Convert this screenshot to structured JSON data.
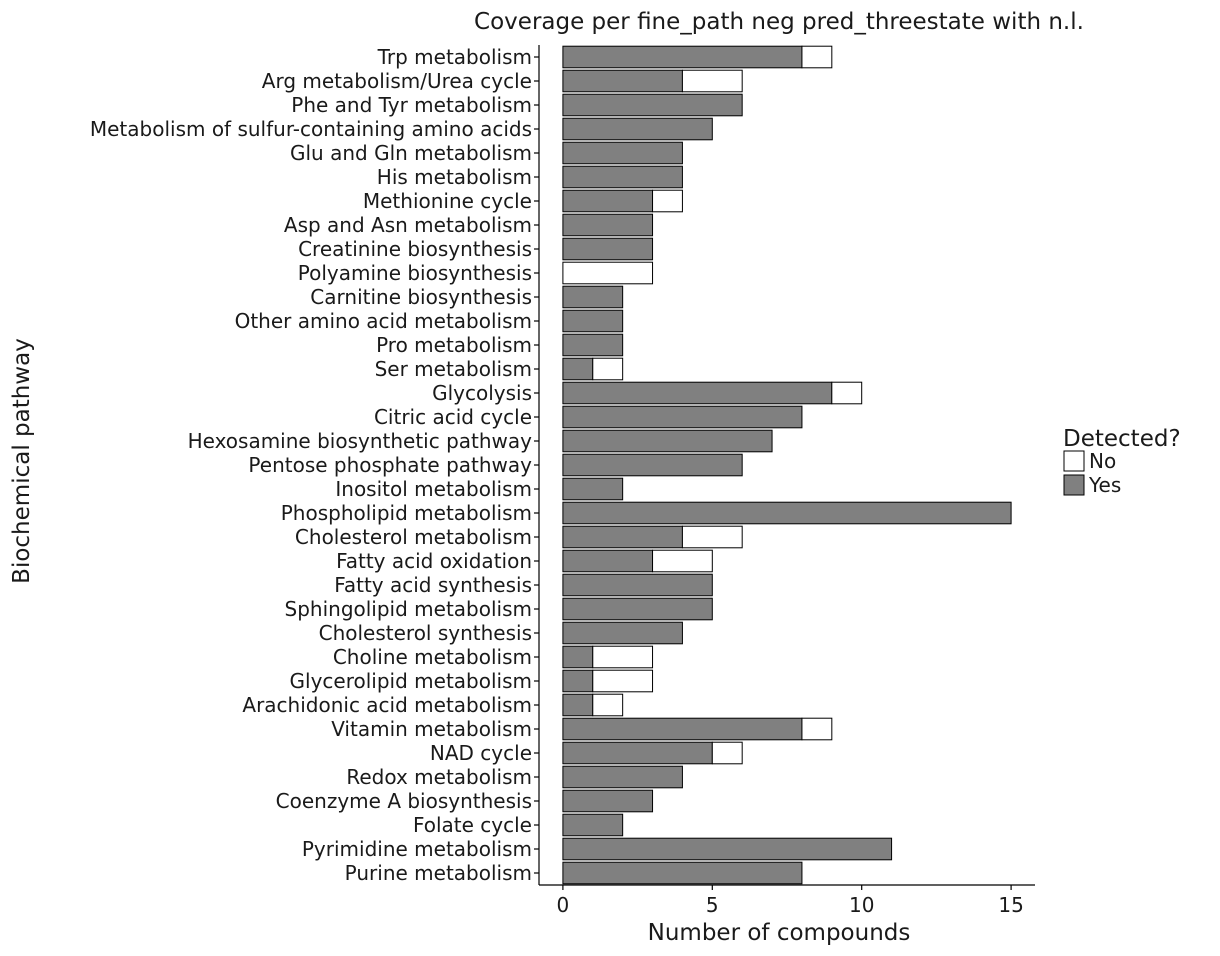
{
  "chart_data": {
    "type": "bar",
    "orientation": "horizontal",
    "stacked": true,
    "title": "Coverage per fine_path neg pred_threestate with n.l.",
    "xlabel": "Number of compounds",
    "ylabel": "Biochemical pathway",
    "xlim": [
      -0.8,
      15.8
    ],
    "xticks": [
      0,
      5,
      10,
      15
    ],
    "xtick_labels": [
      "0",
      "5",
      "10",
      "15"
    ],
    "grid": false,
    "legend": {
      "title": "Detected?",
      "placement": "right",
      "entries": [
        {
          "label": "No",
          "color": "#ffffff"
        },
        {
          "label": "Yes",
          "color": "#808080"
        }
      ]
    },
    "categories": [
      "Trp metabolism",
      "Arg metabolism/Urea cycle",
      "Phe and Tyr metabolism",
      "Metabolism of sulfur-containing amino acids",
      "Glu and Gln metabolism",
      "His metabolism",
      "Methionine cycle",
      "Asp and Asn metabolism",
      "Creatinine biosynthesis",
      "Polyamine biosynthesis",
      "Carnitine biosynthesis",
      "Other amino acid metabolism",
      "Pro metabolism",
      "Ser metabolism",
      "Glycolysis",
      "Citric acid cycle",
      "Hexosamine biosynthetic pathway",
      "Pentose phosphate pathway",
      "Inositol metabolism",
      "Phospholipid metabolism",
      "Cholesterol metabolism",
      "Fatty acid oxidation",
      "Fatty acid synthesis",
      "Sphingolipid metabolism",
      "Cholesterol synthesis",
      "Choline metabolism",
      "Glycerolipid metabolism",
      "Arachidonic acid metabolism",
      "Vitamin metabolism",
      "NAD cycle",
      "Redox metabolism",
      "Coenzyme A biosynthesis",
      "Folate cycle",
      "Pyrimidine metabolism",
      "Purine metabolism"
    ],
    "series": [
      {
        "name": "Yes",
        "color": "#808080",
        "values": [
          8,
          4,
          6,
          5,
          4,
          4,
          3,
          3,
          3,
          0,
          2,
          2,
          2,
          1,
          9,
          8,
          7,
          6,
          2,
          15,
          4,
          3,
          5,
          5,
          4,
          1,
          1,
          1,
          8,
          5,
          4,
          3,
          2,
          11,
          8
        ]
      },
      {
        "name": "No",
        "color": "#ffffff",
        "values": [
          1,
          2,
          0,
          0,
          0,
          0,
          1,
          0,
          0,
          3,
          0,
          0,
          0,
          1,
          1,
          0,
          0,
          0,
          0,
          0,
          2,
          2,
          0,
          0,
          0,
          2,
          2,
          1,
          1,
          1,
          0,
          0,
          0,
          0,
          0
        ]
      }
    ]
  }
}
